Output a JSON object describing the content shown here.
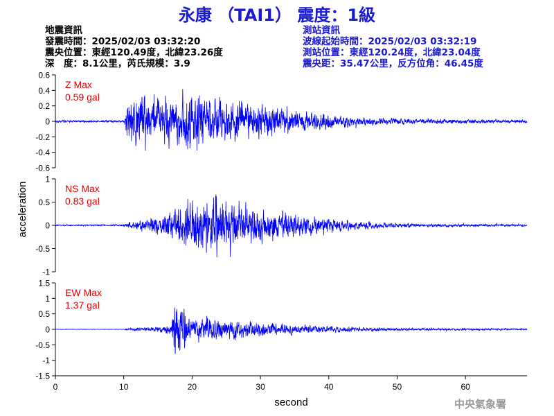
{
  "title": "永康 （TAI1） 震度：1級",
  "earthquake_info": {
    "heading": "地震資訊",
    "time": "發震時間：2025/02/03 03:32:20",
    "epicenter": "震央位置：東經120.49度，北緯23.26度",
    "depth_magnitude": "深　度：8.1公里，芮氏規模：3.9"
  },
  "station_info": {
    "heading": "測站資訊",
    "wave_start": "波線起始時間：2025/02/03 03:32:19",
    "location": "測站位置：東經120.24度，北緯23.04度",
    "distance_azimuth": "震央距：35.47公里，反方位角：46.45度"
  },
  "watermark": "中央氣象署",
  "colors": {
    "title": "#1a1ad0",
    "trace": "#0000ff",
    "max_label": "#e00000",
    "station_text": "#1a1ad0"
  },
  "chart_data": {
    "type": "line",
    "xlabel": "second",
    "ylabel": "acceleration",
    "xlim": [
      0,
      69
    ],
    "x_ticks": [
      0,
      10,
      20,
      30,
      40,
      50,
      60
    ],
    "panels": [
      {
        "name": "Z",
        "max_label": "Z Max",
        "max_value": "0.59 gal",
        "ylim": [
          -0.6,
          0.6
        ],
        "y_ticks": [
          0.6,
          0.4,
          0.2,
          0,
          -0.2,
          -0.4,
          -0.6
        ],
        "y_tick_labels": [
          "0.6",
          "0.4",
          "0.2",
          "0",
          "-0.2",
          "-0.4",
          "-0.6"
        ],
        "envelope_t": [
          0,
          10.1,
          10.3,
          11,
          12,
          13,
          14,
          16,
          18,
          19,
          20,
          22,
          24,
          26,
          28,
          30,
          32,
          34,
          36,
          38,
          40,
          42,
          44,
          46,
          48,
          50,
          55,
          60,
          65,
          69
        ],
        "envelope_a": [
          0.02,
          0.02,
          0.3,
          0.4,
          0.45,
          0.5,
          0.42,
          0.34,
          0.42,
          0.48,
          0.5,
          0.47,
          0.38,
          0.36,
          0.33,
          0.3,
          0.26,
          0.22,
          0.18,
          0.15,
          0.12,
          0.1,
          0.08,
          0.07,
          0.06,
          0.05,
          0.04,
          0.04,
          0.03,
          0.03
        ]
      },
      {
        "name": "NS",
        "max_label": "NS Max",
        "max_value": "0.83 gal",
        "ylim": [
          -1,
          1
        ],
        "y_ticks": [
          1,
          0.5,
          0,
          -0.5,
          -1
        ],
        "y_tick_labels": [
          "1",
          "0.5",
          "0",
          "-0.5",
          "-1"
        ],
        "envelope_t": [
          0,
          10,
          10.5,
          12,
          14,
          16,
          17,
          18,
          20,
          22,
          24,
          26,
          28,
          30,
          32,
          34,
          36,
          38,
          40,
          42,
          44,
          46,
          48,
          50,
          55,
          60,
          65,
          69
        ],
        "envelope_a": [
          0.02,
          0.02,
          0.08,
          0.14,
          0.2,
          0.32,
          0.45,
          0.6,
          0.7,
          0.74,
          0.8,
          0.7,
          0.58,
          0.5,
          0.42,
          0.34,
          0.3,
          0.26,
          0.22,
          0.16,
          0.13,
          0.1,
          0.08,
          0.06,
          0.05,
          0.04,
          0.04,
          0.03
        ]
      },
      {
        "name": "EW",
        "max_label": "EW Max",
        "max_value": "1.37 gal",
        "ylim": [
          -1.5,
          1.5
        ],
        "y_ticks": [
          1.5,
          1,
          0.5,
          0,
          -0.5,
          -1,
          -1.5
        ],
        "y_tick_labels": [
          "1.5",
          "1",
          "0.5",
          "0",
          "-0.5",
          "-1",
          "-1.5"
        ],
        "envelope_t": [
          0,
          10,
          10.5,
          12,
          14,
          16,
          17,
          17.5,
          18,
          19,
          20,
          22,
          24,
          26,
          28,
          30,
          32,
          34,
          36,
          38,
          40,
          42,
          44,
          46,
          48,
          50,
          55,
          60,
          65,
          69
        ],
        "envelope_a": [
          0.01,
          0.01,
          0.04,
          0.08,
          0.1,
          0.14,
          0.3,
          1.3,
          1.1,
          0.7,
          0.55,
          0.5,
          0.45,
          0.42,
          0.35,
          0.3,
          0.26,
          0.22,
          0.18,
          0.16,
          0.13,
          0.11,
          0.1,
          0.08,
          0.07,
          0.06,
          0.05,
          0.04,
          0.04,
          0.03
        ]
      }
    ]
  }
}
